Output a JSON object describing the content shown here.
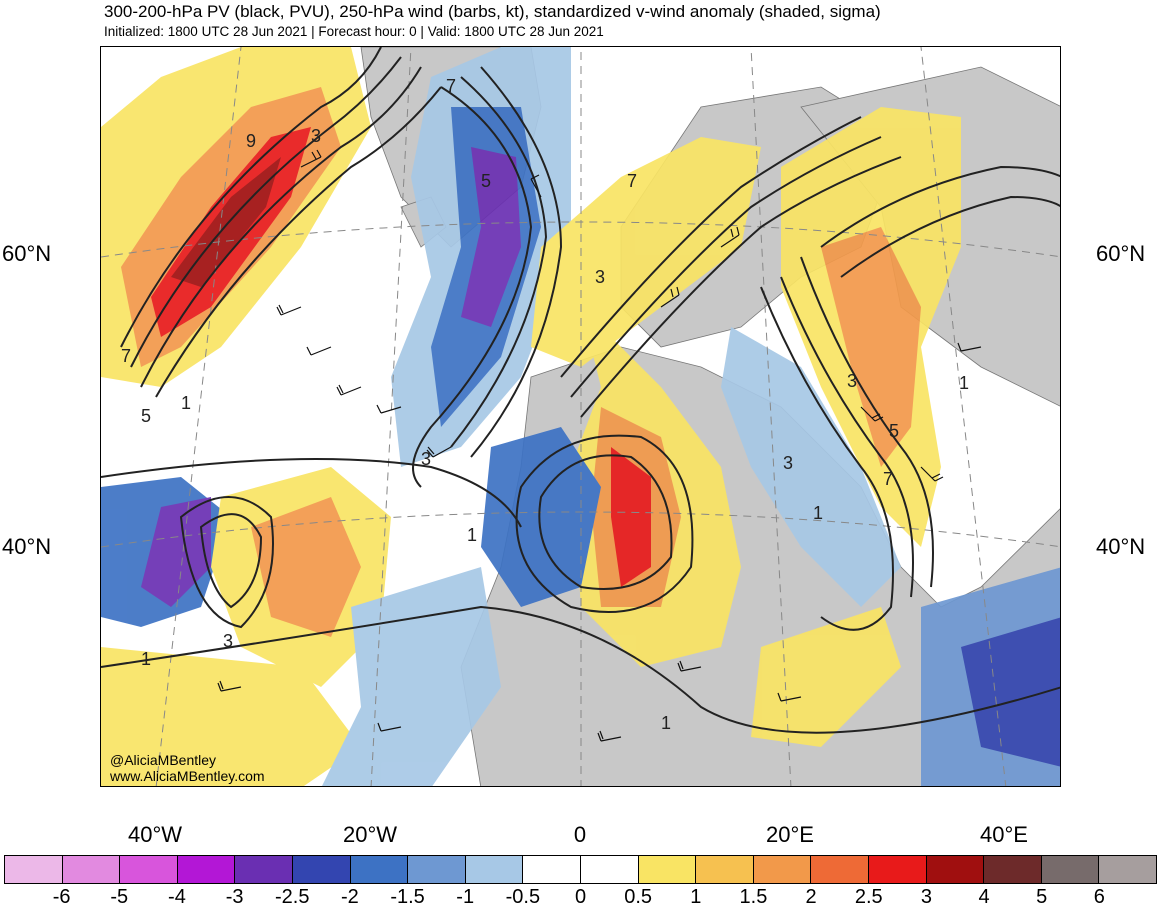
{
  "header": {
    "title": "300-200-hPa PV (black, PVU), 250-hPa wind (barbs, kt), standardized v-wind anomaly (shaded, sigma)",
    "subtitle": "Initialized: 1800 UTC 28 Jun 2021 | Forecast hour: 0 | Valid: 1800 UTC 28 Jun 2021"
  },
  "map": {
    "lat_labels": [
      "60°N",
      "40°N"
    ],
    "lon_labels": [
      "40°W",
      "20°W",
      "0",
      "20°E",
      "40°E"
    ],
    "pv_contour_labels": [
      "3",
      "5",
      "7",
      "9",
      "1"
    ]
  },
  "credit": {
    "handle": "@AliciaMBentley",
    "website": "www.AliciaMBentley.com"
  },
  "colorbar": {
    "labels": [
      "-6",
      "-5",
      "-4",
      "-3",
      "-2.5",
      "-2",
      "-1.5",
      "-1",
      "-0.5",
      "0",
      "0.5",
      "1",
      "1.5",
      "2",
      "2.5",
      "3",
      "4",
      "5",
      "6"
    ],
    "colors": [
      "#ecb8e8",
      "#e28ae0",
      "#d855dc",
      "#b317d6",
      "#6a2fb2",
      "#3345b0",
      "#3d72c4",
      "#6e98d2",
      "#a7c8e6",
      "#ffffff",
      "#ffffff",
      "#f9e464",
      "#f6c150",
      "#f2994a",
      "#ee6a36",
      "#e81a1a",
      "#a00f0f",
      "#6d2a2a",
      "#776b6b",
      "#a69e9e"
    ]
  }
}
